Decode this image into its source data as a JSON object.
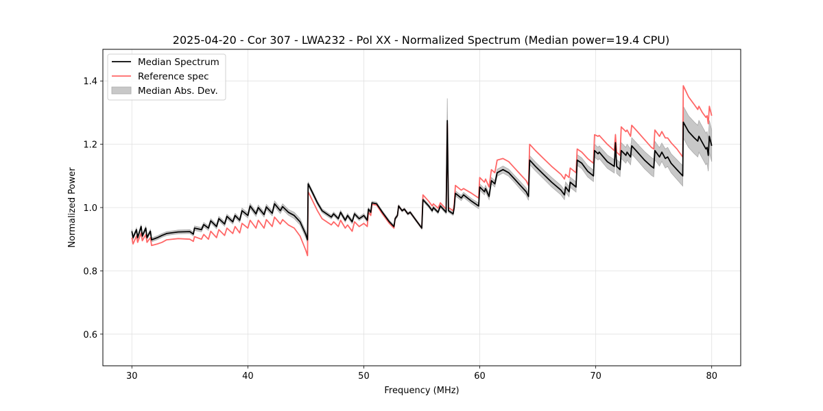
{
  "chart_data": {
    "type": "line",
    "title": "2025-04-20 - Cor 307 - LWA232 - Pol XX - Normalized Spectrum (Median power=19.4 CPU)",
    "xlabel": "Frequency (MHz)",
    "ylabel": "Normalized Power",
    "xlim": [
      27.5,
      82.5
    ],
    "ylim": [
      0.5,
      1.5
    ],
    "xticks": [
      30,
      40,
      50,
      60,
      70,
      80
    ],
    "xtick_labels": [
      "30",
      "40",
      "50",
      "60",
      "70",
      "80"
    ],
    "yticks": [
      0.6,
      0.8,
      1.0,
      1.2,
      1.4
    ],
    "ytick_labels": [
      "0.6",
      "0.8",
      "1.0",
      "1.2",
      "1.4"
    ],
    "grid": true,
    "legend": {
      "placement": "top-left",
      "entries": [
        {
          "label": "Median Spectrum",
          "kind": "line",
          "color": "#000000"
        },
        {
          "label": "Reference spec",
          "kind": "line",
          "color": "#ff6666"
        },
        {
          "label": "Median Abs. Dev.",
          "kind": "band",
          "color": "#bfbfbf"
        }
      ]
    },
    "colors": {
      "median": "#000000",
      "reference": "#ff6666",
      "mad_fill": "#c8c8c8",
      "mad_edge": "#a9a9a9",
      "grid": "#e0e0e0"
    },
    "series_columns": [
      "freq_mhz",
      "median",
      "reference",
      "mad"
    ],
    "points": [
      [
        30.0,
        0.925,
        0.905,
        0.006
      ],
      [
        30.1,
        0.905,
        0.885,
        0.006
      ],
      [
        30.4,
        0.93,
        0.91,
        0.006
      ],
      [
        30.5,
        0.905,
        0.89,
        0.006
      ],
      [
        30.8,
        0.94,
        0.92,
        0.006
      ],
      [
        30.9,
        0.91,
        0.895,
        0.006
      ],
      [
        31.2,
        0.935,
        0.915,
        0.006
      ],
      [
        31.3,
        0.905,
        0.89,
        0.006
      ],
      [
        31.6,
        0.925,
        0.905,
        0.006
      ],
      [
        31.7,
        0.898,
        0.88,
        0.006
      ],
      [
        32.2,
        0.905,
        0.885,
        0.006
      ],
      [
        32.6,
        0.912,
        0.89,
        0.006
      ],
      [
        33.0,
        0.918,
        0.898,
        0.006
      ],
      [
        34.0,
        0.923,
        0.902,
        0.006
      ],
      [
        35.0,
        0.924,
        0.9,
        0.006
      ],
      [
        35.3,
        0.916,
        0.893,
        0.006
      ],
      [
        35.4,
        0.935,
        0.908,
        0.007
      ],
      [
        36.0,
        0.93,
        0.9,
        0.007
      ],
      [
        36.2,
        0.946,
        0.915,
        0.007
      ],
      [
        36.6,
        0.935,
        0.9,
        0.007
      ],
      [
        36.8,
        0.958,
        0.925,
        0.007
      ],
      [
        37.3,
        0.94,
        0.905,
        0.007
      ],
      [
        37.5,
        0.965,
        0.93,
        0.007
      ],
      [
        38.0,
        0.948,
        0.912,
        0.007
      ],
      [
        38.2,
        0.972,
        0.935,
        0.007
      ],
      [
        38.7,
        0.955,
        0.918,
        0.007
      ],
      [
        38.9,
        0.975,
        0.94,
        0.007
      ],
      [
        39.3,
        0.96,
        0.92,
        0.007
      ],
      [
        39.5,
        0.99,
        0.95,
        0.008
      ],
      [
        40.0,
        0.975,
        0.935,
        0.008
      ],
      [
        40.2,
        1.005,
        0.96,
        0.008
      ],
      [
        40.7,
        0.98,
        0.935,
        0.008
      ],
      [
        40.9,
        1.0,
        0.96,
        0.008
      ],
      [
        41.4,
        0.978,
        0.935,
        0.008
      ],
      [
        41.6,
        1.002,
        0.962,
        0.008
      ],
      [
        42.1,
        0.982,
        0.94,
        0.008
      ],
      [
        42.3,
        1.012,
        0.97,
        0.009
      ],
      [
        42.8,
        0.99,
        0.948,
        0.009
      ],
      [
        43.0,
        1.003,
        0.962,
        0.009
      ],
      [
        43.5,
        0.985,
        0.945,
        0.009
      ],
      [
        44.0,
        0.975,
        0.935,
        0.01
      ],
      [
        44.5,
        0.955,
        0.91,
        0.01
      ],
      [
        45.0,
        0.915,
        0.865,
        0.01
      ],
      [
        45.15,
        0.898,
        0.848,
        0.01
      ],
      [
        45.2,
        1.075,
        1.05,
        0.006
      ],
      [
        45.6,
        1.045,
        1.02,
        0.006
      ],
      [
        46.0,
        1.015,
        0.99,
        0.006
      ],
      [
        46.4,
        0.99,
        0.965,
        0.006
      ],
      [
        46.8,
        0.98,
        0.955,
        0.006
      ],
      [
        47.2,
        0.97,
        0.945,
        0.006
      ],
      [
        47.4,
        0.98,
        0.955,
        0.006
      ],
      [
        47.8,
        0.965,
        0.94,
        0.006
      ],
      [
        48.0,
        0.985,
        0.96,
        0.006
      ],
      [
        48.4,
        0.96,
        0.935,
        0.006
      ],
      [
        48.6,
        0.975,
        0.945,
        0.006
      ],
      [
        49.0,
        0.955,
        0.925,
        0.006
      ],
      [
        49.2,
        0.98,
        0.955,
        0.006
      ],
      [
        49.6,
        0.965,
        0.94,
        0.006
      ],
      [
        50.0,
        0.975,
        0.95,
        0.006
      ],
      [
        50.3,
        0.96,
        0.94,
        0.006
      ],
      [
        50.4,
        0.995,
        0.985,
        0.005
      ],
      [
        50.6,
        0.985,
        0.975,
        0.005
      ],
      [
        50.7,
        1.015,
        1.01,
        0.005
      ],
      [
        51.1,
        1.012,
        1.008,
        0.005
      ],
      [
        51.6,
        0.985,
        0.98,
        0.005
      ],
      [
        52.2,
        0.955,
        0.95,
        0.005
      ],
      [
        52.6,
        0.94,
        0.935,
        0.005
      ],
      [
        52.7,
        0.965,
        0.965,
        0.005
      ],
      [
        52.9,
        0.975,
        0.975,
        0.005
      ],
      [
        53.0,
        1.005,
        1.005,
        0.004
      ],
      [
        53.3,
        0.99,
        0.99,
        0.004
      ],
      [
        53.5,
        0.995,
        0.995,
        0.004
      ],
      [
        53.8,
        0.98,
        0.98,
        0.004
      ],
      [
        54.0,
        0.985,
        0.985,
        0.004
      ],
      [
        54.5,
        0.96,
        0.96,
        0.004
      ],
      [
        55.0,
        0.935,
        0.935,
        0.004
      ],
      [
        55.1,
        1.025,
        1.04,
        0.005
      ],
      [
        55.6,
        1.005,
        1.02,
        0.005
      ],
      [
        55.9,
        0.99,
        1.005,
        0.005
      ],
      [
        56.0,
        1.0,
        1.012,
        0.005
      ],
      [
        56.4,
        0.985,
        0.998,
        0.005
      ],
      [
        56.6,
        1.005,
        1.015,
        0.005
      ],
      [
        57.1,
        0.985,
        0.995,
        0.005
      ],
      [
        57.2,
        1.275,
        1.265,
        0.07
      ],
      [
        57.3,
        0.99,
        1.0,
        0.005
      ],
      [
        57.5,
        0.985,
        0.995,
        0.005
      ],
      [
        57.7,
        0.98,
        0.99,
        0.005
      ],
      [
        57.8,
        1.0,
        1.01,
        0.005
      ],
      [
        57.9,
        1.045,
        1.07,
        0.008
      ],
      [
        58.4,
        1.03,
        1.055,
        0.008
      ],
      [
        58.6,
        1.04,
        1.06,
        0.008
      ],
      [
        59.3,
        1.02,
        1.045,
        0.008
      ],
      [
        59.9,
        1.005,
        1.03,
        0.009
      ],
      [
        60.0,
        1.065,
        1.095,
        0.01
      ],
      [
        60.4,
        1.05,
        1.08,
        0.01
      ],
      [
        60.5,
        1.06,
        1.09,
        0.01
      ],
      [
        60.8,
        1.035,
        1.065,
        0.01
      ],
      [
        61.0,
        1.085,
        1.12,
        0.01
      ],
      [
        61.3,
        1.075,
        1.11,
        0.01
      ],
      [
        61.5,
        1.11,
        1.15,
        0.011
      ],
      [
        62.0,
        1.12,
        1.155,
        0.011
      ],
      [
        62.5,
        1.11,
        1.145,
        0.011
      ],
      [
        63.0,
        1.09,
        1.125,
        0.011
      ],
      [
        63.5,
        1.07,
        1.105,
        0.012
      ],
      [
        64.0,
        1.05,
        1.085,
        0.012
      ],
      [
        64.2,
        1.035,
        1.07,
        0.012
      ],
      [
        64.3,
        1.15,
        1.2,
        0.014
      ],
      [
        64.8,
        1.13,
        1.18,
        0.014
      ],
      [
        65.5,
        1.105,
        1.155,
        0.014
      ],
      [
        66.2,
        1.08,
        1.13,
        0.015
      ],
      [
        67.0,
        1.055,
        1.105,
        0.015
      ],
      [
        67.3,
        1.04,
        1.09,
        0.015
      ],
      [
        67.4,
        1.065,
        1.105,
        0.016
      ],
      [
        67.7,
        1.05,
        1.095,
        0.016
      ],
      [
        67.8,
        1.08,
        1.125,
        0.016
      ],
      [
        68.3,
        1.065,
        1.11,
        0.016
      ],
      [
        68.4,
        1.15,
        1.185,
        0.017
      ],
      [
        68.8,
        1.14,
        1.175,
        0.017
      ],
      [
        69.3,
        1.115,
        1.155,
        0.018
      ],
      [
        69.8,
        1.1,
        1.14,
        0.018
      ],
      [
        69.9,
        1.18,
        1.23,
        0.02
      ],
      [
        70.2,
        1.17,
        1.225,
        0.02
      ],
      [
        70.3,
        1.175,
        1.228,
        0.02
      ],
      [
        71.0,
        1.145,
        1.2,
        0.021
      ],
      [
        71.6,
        1.13,
        1.18,
        0.021
      ],
      [
        71.7,
        1.205,
        1.23,
        0.028
      ],
      [
        71.8,
        1.13,
        1.175,
        0.022
      ],
      [
        72.1,
        1.12,
        1.165,
        0.022
      ],
      [
        72.2,
        1.18,
        1.255,
        0.025
      ],
      [
        72.6,
        1.165,
        1.24,
        0.025
      ],
      [
        72.7,
        1.175,
        1.245,
        0.025
      ],
      [
        73.0,
        1.16,
        1.225,
        0.025
      ],
      [
        73.1,
        1.195,
        1.26,
        0.026
      ],
      [
        73.6,
        1.175,
        1.24,
        0.026
      ],
      [
        74.2,
        1.15,
        1.215,
        0.027
      ],
      [
        74.8,
        1.13,
        1.19,
        0.028
      ],
      [
        75.0,
        1.125,
        1.185,
        0.028
      ],
      [
        75.1,
        1.18,
        1.245,
        0.029
      ],
      [
        75.5,
        1.16,
        1.225,
        0.029
      ],
      [
        75.7,
        1.175,
        1.24,
        0.029
      ],
      [
        76.0,
        1.155,
        1.22,
        0.03
      ],
      [
        76.2,
        1.16,
        1.22,
        0.03
      ],
      [
        76.5,
        1.14,
        1.205,
        0.03
      ],
      [
        77.0,
        1.12,
        1.185,
        0.031
      ],
      [
        77.5,
        1.1,
        1.16,
        0.032
      ],
      [
        77.55,
        1.27,
        1.385,
        0.05
      ],
      [
        78.0,
        1.24,
        1.35,
        0.05
      ],
      [
        78.5,
        1.22,
        1.325,
        0.05
      ],
      [
        78.8,
        1.21,
        1.31,
        0.05
      ],
      [
        78.9,
        1.225,
        1.32,
        0.05
      ],
      [
        79.2,
        1.205,
        1.3,
        0.05
      ],
      [
        79.5,
        1.185,
        1.285,
        0.05
      ],
      [
        79.6,
        1.19,
        1.29,
        0.05
      ],
      [
        79.7,
        1.165,
        1.265,
        0.05
      ],
      [
        79.8,
        1.225,
        1.32,
        0.05
      ],
      [
        80.0,
        1.195,
        1.29,
        0.05
      ]
    ]
  }
}
